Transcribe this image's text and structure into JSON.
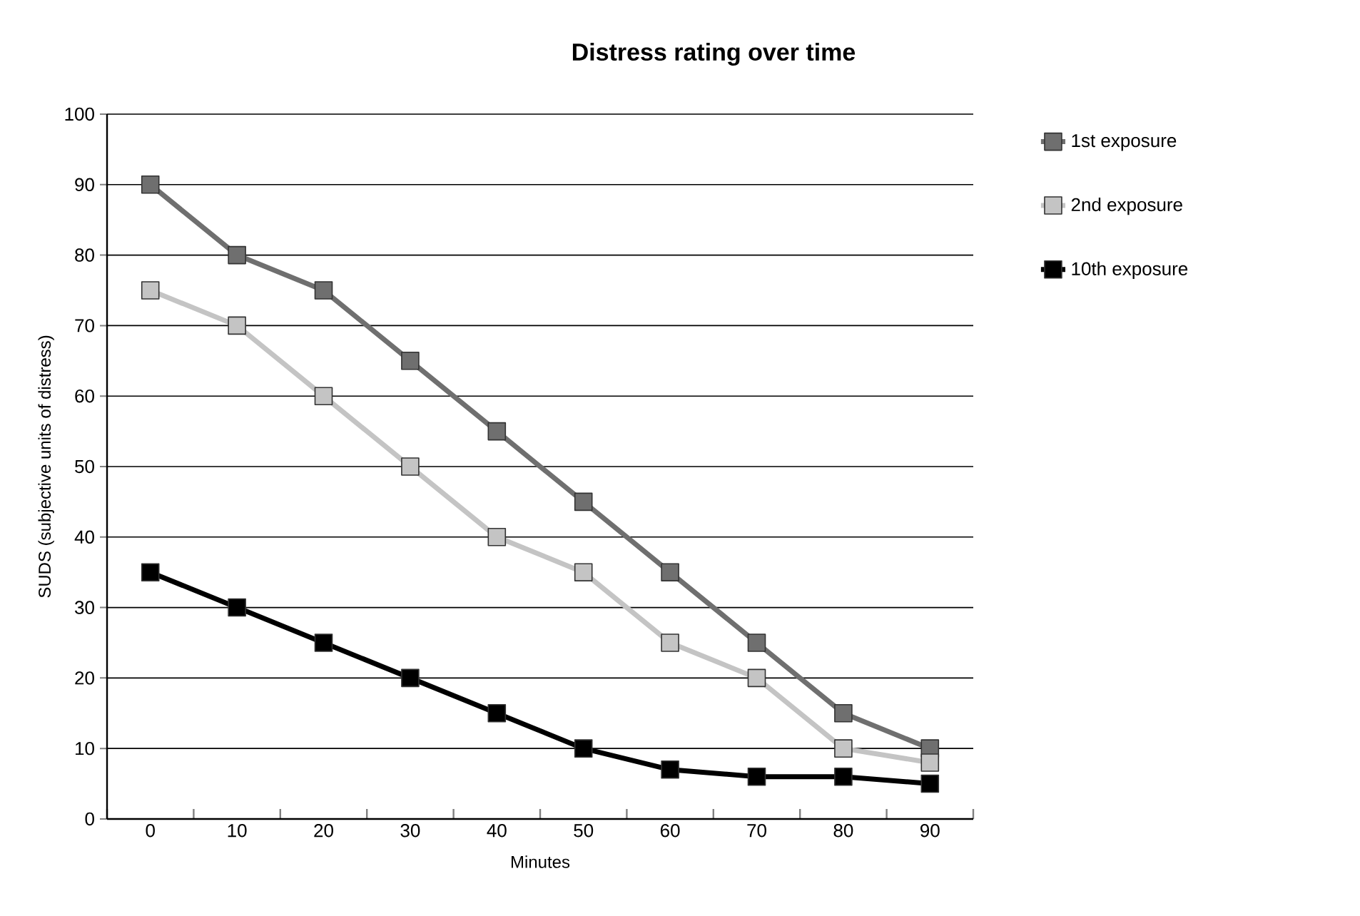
{
  "chart_data": {
    "type": "line",
    "title": "Distress rating over time",
    "xlabel": "Minutes",
    "ylabel": "SUDS (subjective units of distress)",
    "categories": [
      "0",
      "10",
      "20",
      "30",
      "40",
      "50",
      "60",
      "70",
      "80",
      "90"
    ],
    "series": [
      {
        "name": "1st exposure",
        "color": "#6f6f6f",
        "values": [
          90,
          80,
          75,
          65,
          55,
          45,
          35,
          25,
          15,
          10
        ]
      },
      {
        "name": "2nd exposure",
        "color": "#c4c4c4",
        "values": [
          75,
          70,
          60,
          50,
          40,
          35,
          25,
          20,
          10,
          8
        ]
      },
      {
        "name": "10th exposure",
        "color": "#000000",
        "values": [
          35,
          30,
          25,
          20,
          15,
          10,
          7,
          6,
          6,
          5
        ]
      }
    ],
    "ylim": [
      0,
      100
    ],
    "yticks": [
      0,
      10,
      20,
      30,
      40,
      50,
      60,
      70,
      80,
      90,
      100
    ],
    "grid": "y",
    "legend": "right",
    "marker": "square",
    "line_style": "solid"
  }
}
